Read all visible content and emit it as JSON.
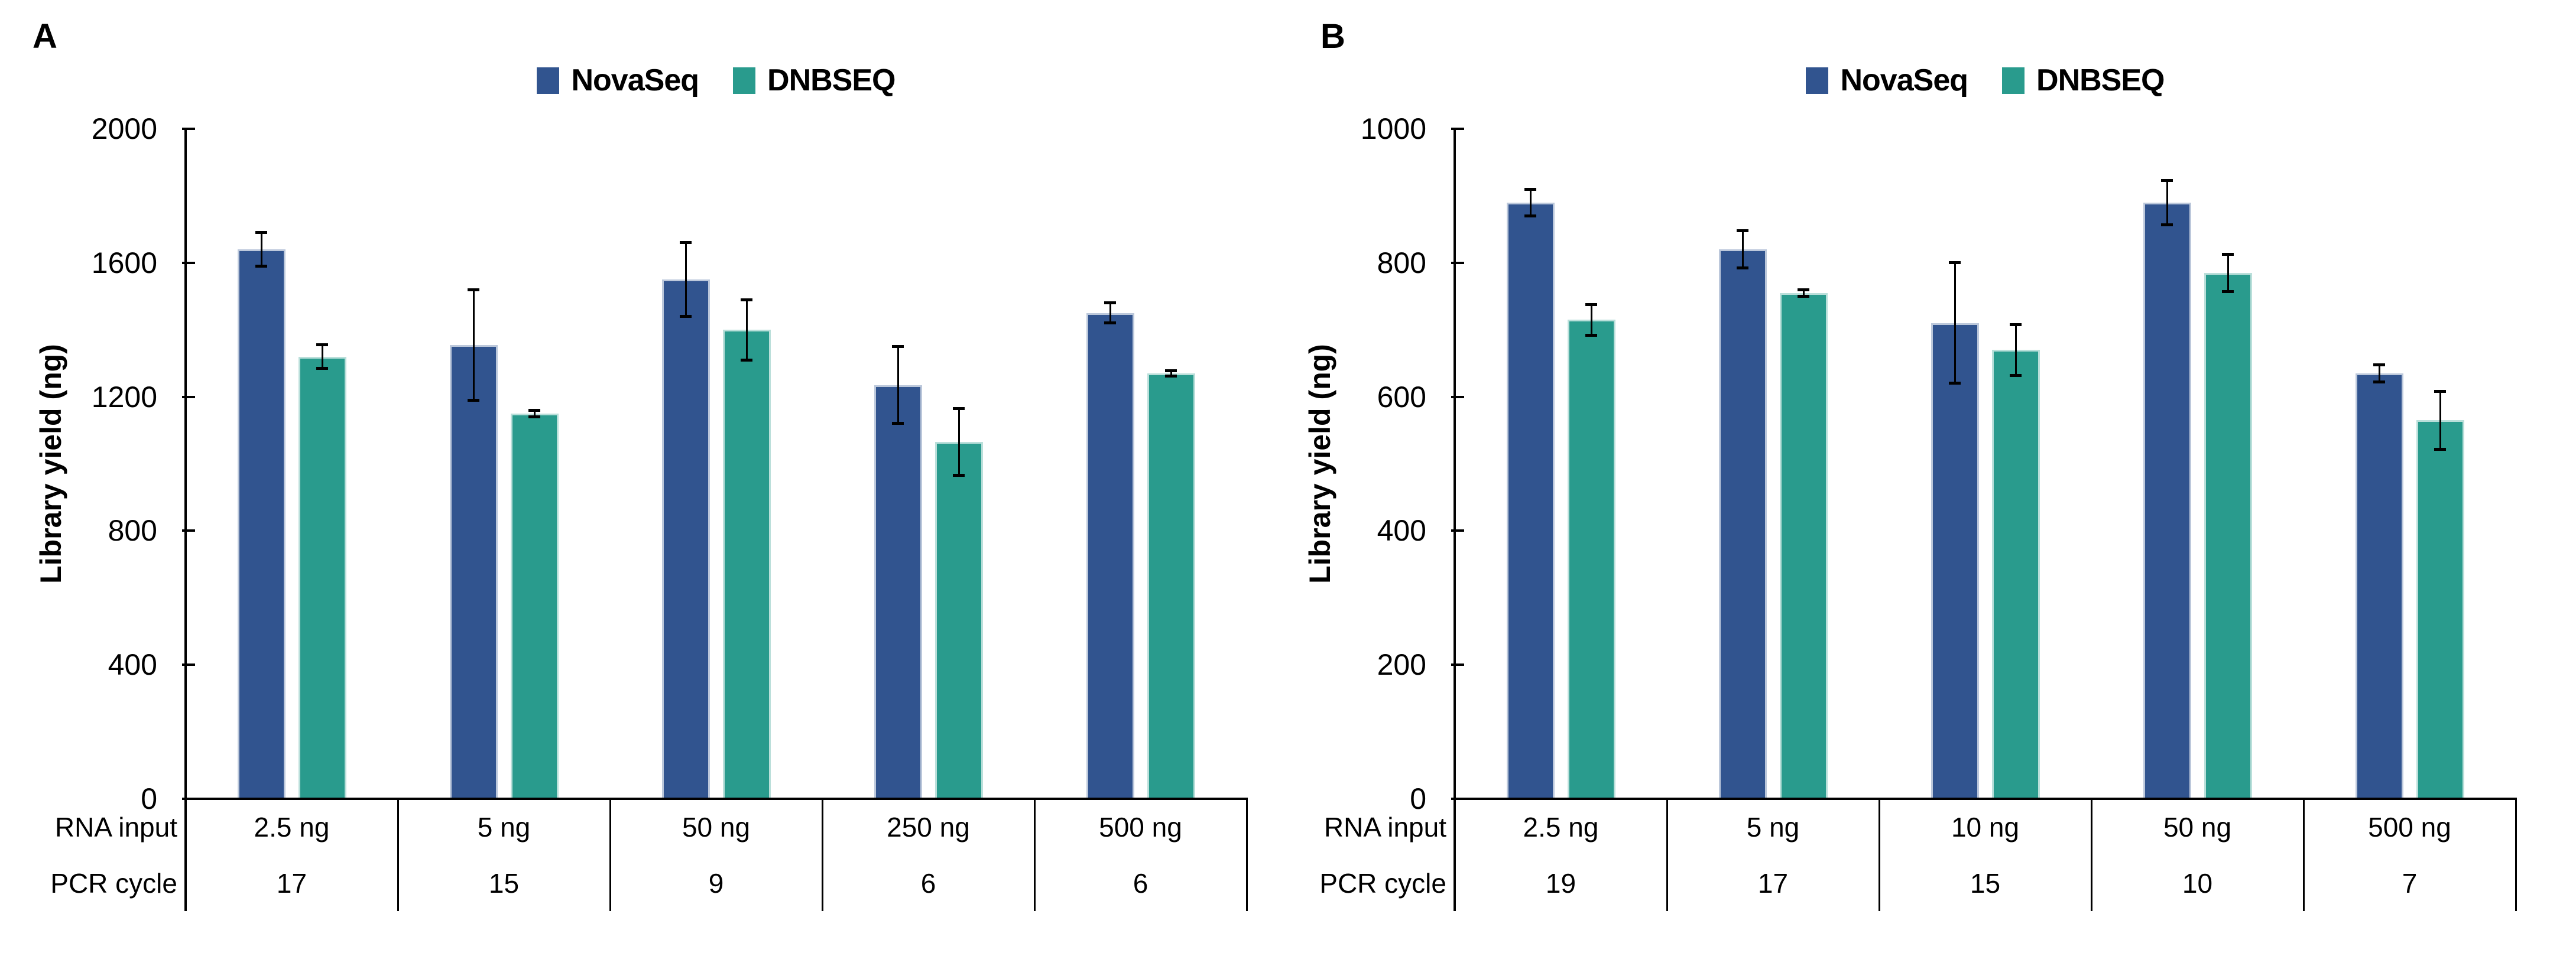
{
  "chart_data": [
    {
      "type": "bar",
      "panel_label": "A",
      "title": "",
      "ylabel": "Library yield (ng)",
      "xlabel": "",
      "ylim": [
        0,
        2000
      ],
      "yticks": [
        0,
        400,
        800,
        1200,
        1600,
        2000
      ],
      "grid": "off",
      "legend_position": "top-center",
      "legend": [
        "NovaSeq",
        "DNBSEQ"
      ],
      "categories": [
        "2.5 ng",
        "5 ng",
        "50 ng",
        "250 ng",
        "500 ng"
      ],
      "category_rows": [
        {
          "label": "RNA input",
          "values": [
            "2.5 ng",
            "5 ng",
            "50 ng",
            "250 ng",
            "500 ng"
          ]
        },
        {
          "label": "PCR cycle",
          "values": [
            "17",
            "15",
            "9",
            "6",
            "6"
          ]
        }
      ],
      "series": [
        {
          "name": "NovaSeq",
          "color": "#31548F",
          "values": [
            1640,
            1355,
            1550,
            1235,
            1450
          ],
          "errors": [
            50,
            165,
            110,
            115,
            30
          ]
        },
        {
          "name": "DNBSEQ",
          "color": "#299B8D",
          "values": [
            1320,
            1150,
            1400,
            1065,
            1270
          ],
          "errors": [
            35,
            10,
            90,
            100,
            8
          ]
        }
      ]
    },
    {
      "type": "bar",
      "panel_label": "B",
      "title": "",
      "ylabel": "Library yield (ng)",
      "xlabel": "",
      "ylim": [
        0,
        1000
      ],
      "yticks": [
        0,
        200,
        400,
        600,
        800,
        1000
      ],
      "grid": "off",
      "legend_position": "top-center",
      "legend": [
        "NovaSeq",
        "DNBSEQ"
      ],
      "categories": [
        "2.5 ng",
        "5 ng",
        "10 ng",
        "50 ng",
        "500 ng"
      ],
      "category_rows": [
        {
          "label": "RNA input",
          "values": [
            "2.5 ng",
            "5 ng",
            "10 ng",
            "50 ng",
            "500 ng"
          ]
        },
        {
          "label": "PCR cycle",
          "values": [
            "19",
            "17",
            "15",
            "10",
            "7"
          ]
        }
      ],
      "series": [
        {
          "name": "NovaSeq",
          "color": "#31548F",
          "values": [
            890,
            820,
            710,
            890,
            635
          ],
          "errors": [
            20,
            28,
            90,
            33,
            13
          ]
        },
        {
          "name": "DNBSEQ",
          "color": "#299B8D",
          "values": [
            715,
            755,
            670,
            785,
            565
          ],
          "errors": [
            23,
            5,
            38,
            28,
            43
          ]
        }
      ]
    }
  ],
  "colors": {
    "novaseq": "#31548F",
    "dnbseq": "#299B8D",
    "axis": "#000000",
    "background": "#FFFFFF"
  }
}
